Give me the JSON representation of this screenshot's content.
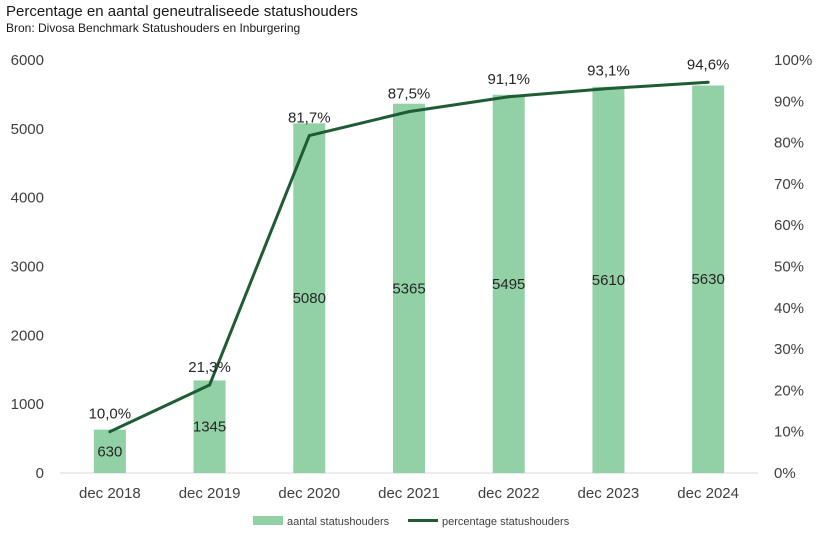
{
  "title": "Percentage en aantal geneutraliseede statushouders",
  "subtitle": "Bron: Divosa Benchmark Statushouders en Inburgering",
  "colors": {
    "bar": "#92d0a6",
    "line": "#1f5c34",
    "axis": "#d9d9d9"
  },
  "chart_data": {
    "type": "bar+line",
    "categories": [
      "dec 2018",
      "dec 2019",
      "dec 2020",
      "dec 2021",
      "dec 2022",
      "dec 2023",
      "dec 2024"
    ],
    "series": [
      {
        "name": "aantal statushouders",
        "type": "bar",
        "axis": "left",
        "values": [
          630,
          1345,
          5080,
          5365,
          5495,
          5610,
          5630
        ],
        "labels": [
          "630",
          "1345",
          "5080",
          "5365",
          "5495",
          "5610",
          "5630"
        ]
      },
      {
        "name": "percentage statushouders",
        "type": "line",
        "axis": "right",
        "values": [
          10.0,
          21.3,
          81.7,
          87.5,
          91.1,
          93.1,
          94.6
        ],
        "labels": [
          "10,0%",
          "21,3%",
          "81,7%",
          "87,5%",
          "91,1%",
          "93,1%",
          "94,6%"
        ]
      }
    ],
    "y_left": {
      "ylim": [
        0,
        6000
      ],
      "ticks": [
        "0",
        "1000",
        "2000",
        "3000",
        "4000",
        "5000",
        "6000"
      ]
    },
    "y_right": {
      "ylim": [
        0,
        100
      ],
      "ticks": [
        "0%",
        "10%",
        "20%",
        "30%",
        "40%",
        "50%",
        "60%",
        "70%",
        "80%",
        "90%",
        "100%"
      ]
    },
    "grid": false,
    "legend_position": "bottom"
  }
}
